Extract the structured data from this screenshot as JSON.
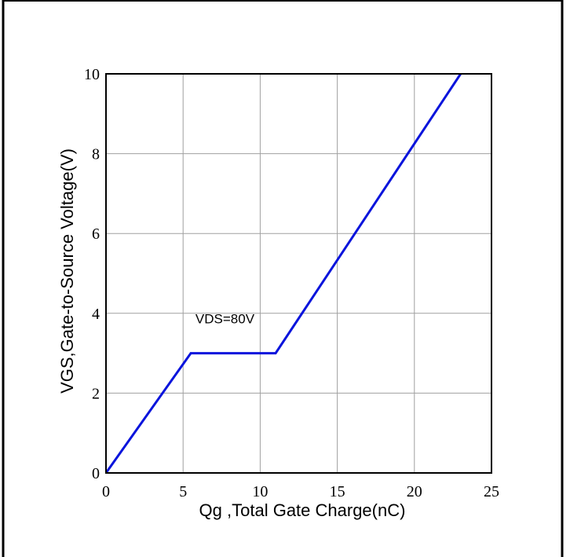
{
  "colors": {
    "series": "#0a14dc",
    "grid": "#a0a0a0",
    "axis": "#000000",
    "frame": "#000000"
  },
  "chart_data": {
    "type": "line",
    "title": "",
    "xlabel": "Qg ,Total Gate Charge(nC)",
    "ylabel": "VGS,Gate-to-Source Voltage(V)",
    "xlim": [
      0,
      25
    ],
    "ylim": [
      0,
      10
    ],
    "xticks": [
      0,
      5,
      10,
      15,
      20,
      25
    ],
    "yticks": [
      0,
      2,
      4,
      6,
      8,
      10
    ],
    "xtick_labels": [
      "0",
      "5",
      "10",
      "15",
      "20",
      "25"
    ],
    "ytick_labels": [
      "0",
      "2",
      "4",
      "6",
      "8",
      "10"
    ],
    "grid": true,
    "series": [
      {
        "x": [
          0,
          5.5,
          11.0,
          23.0
        ],
        "y": [
          0,
          3.0,
          3.0,
          10.0
        ]
      }
    ],
    "annotations": [
      {
        "text": "VDS=80V",
        "x": 5.8,
        "y": 3.75
      }
    ]
  }
}
